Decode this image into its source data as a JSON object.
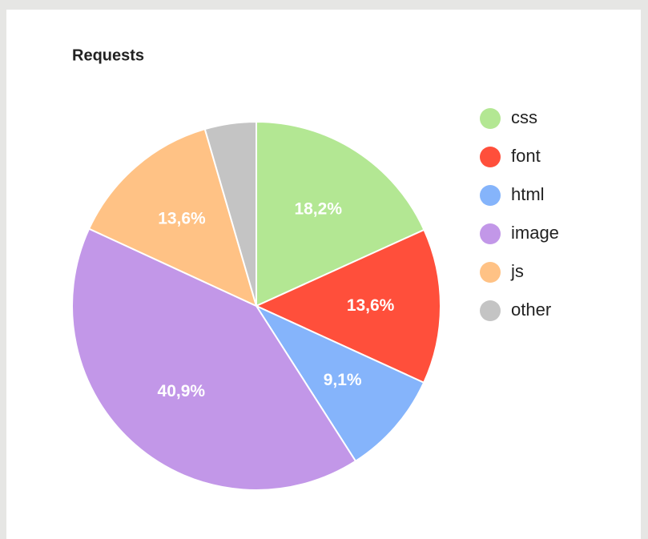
{
  "chart_data": {
    "type": "pie",
    "title": "Requests",
    "categories": [
      "css",
      "font",
      "html",
      "image",
      "js",
      "other"
    ],
    "values": [
      18.2,
      13.6,
      9.1,
      40.9,
      13.6,
      4.5
    ],
    "value_labels": [
      "18,2%",
      "13,6%",
      "9,1%",
      "40,9%",
      "13,6%",
      null
    ],
    "colors": [
      "#b3e793",
      "#ff4f3b",
      "#85b4fb",
      "#c297e8",
      "#ffc285",
      "#c4c4c4"
    ],
    "legend": "right"
  }
}
